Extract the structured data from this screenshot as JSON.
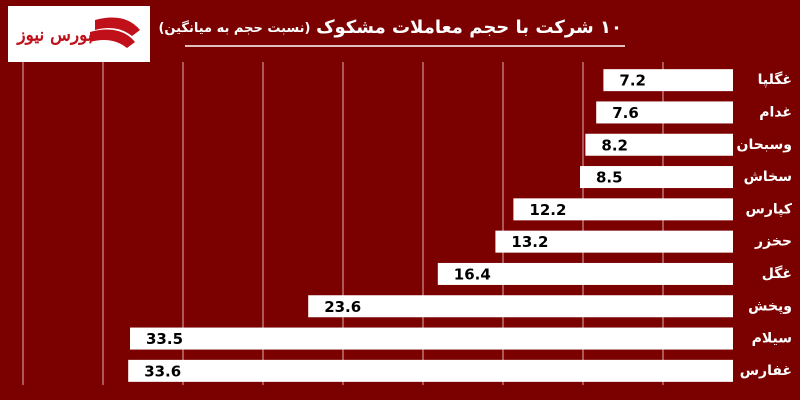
{
  "logo": "بورس نیوز",
  "chart_data": {
    "type": "bar",
    "orientation": "horizontal",
    "title": "۱۰ شرکت با حجم معاملات مشکوک",
    "subtitle": "(نسبت حجم به میانگین)",
    "categories": [
      "غگلپا",
      "غدام",
      "وسبحان",
      "سخاش",
      "کپارس",
      "حخزر",
      "غگل",
      "وپخش",
      "سیلام",
      "غفارس"
    ],
    "values": [
      7.2,
      7.6,
      8.2,
      8.5,
      12.2,
      13.2,
      16.4,
      23.6,
      33.5,
      33.6
    ],
    "color": "#ffffff",
    "xlim": [
      0,
      40
    ]
  }
}
